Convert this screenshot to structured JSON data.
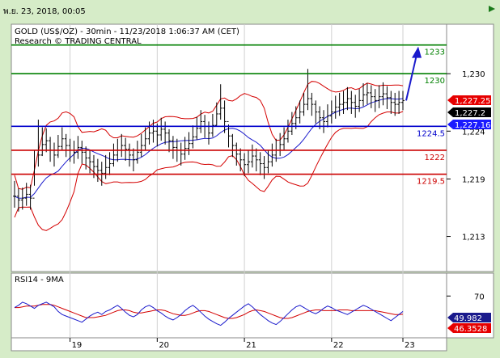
{
  "header": {
    "date_label": "พ.ย. 23, 2018, 00:05"
  },
  "chart_data": {
    "type": "line",
    "title": "GOLD (US$/OZ) - 30min - 11/23/2018 1:06:37 AM (CET)",
    "subtitle": "Research © TRADING CENTRAL",
    "x_tick_labels": [
      "19",
      "20",
      "21",
      "22",
      "23"
    ],
    "price_axis": {
      "ylim": [
        1209.5,
        1235.0
      ],
      "tick_labels": [
        "1,230",
        "1,224",
        "1,219",
        "1,213"
      ],
      "tick_values": [
        1230,
        1224,
        1219,
        1213
      ]
    },
    "levels": [
      {
        "label": "1233",
        "value": 1233,
        "color": "#008000"
      },
      {
        "label": "1230",
        "value": 1230,
        "color": "#008000"
      },
      {
        "label": "1224.5",
        "value": 1224.5,
        "color": "#0000cc"
      },
      {
        "label": "1222",
        "value": 1222,
        "color": "#cc0000"
      },
      {
        "label": "1219.5",
        "value": 1219.5,
        "color": "#cc0000"
      }
    ],
    "price_badges": [
      {
        "label": "1,227.25",
        "color": "#e60000"
      },
      {
        "label": "1,227.2",
        "color": "#000000"
      },
      {
        "label": "1,227.16",
        "color": "#1a1aff"
      }
    ],
    "price_series": {
      "name": "GOLD",
      "close": [
        1217.2,
        1216.8,
        1217.0,
        1217.4,
        1217.0,
        1219.5,
        1221.5,
        1222.6,
        1223.0,
        1222.0,
        1221.5,
        1222.4,
        1223.2,
        1222.5,
        1222.0,
        1221.8,
        1222.3,
        1221.8,
        1221.2,
        1220.8,
        1220.3,
        1219.9,
        1219.6,
        1220.2,
        1220.6,
        1221.5,
        1222.0,
        1222.5,
        1222.1,
        1221.5,
        1221.0,
        1221.8,
        1222.5,
        1223.2,
        1223.8,
        1224.0,
        1223.6,
        1224.2,
        1223.8,
        1223.0,
        1222.3,
        1222.0,
        1221.6,
        1222.2,
        1222.7,
        1223.4,
        1224.3,
        1225.0,
        1224.5,
        1223.8,
        1224.6,
        1225.8,
        1226.4,
        1225.0,
        1223.5,
        1222.5,
        1221.6,
        1221.0,
        1220.5,
        1220.8,
        1221.4,
        1221.0,
        1220.6,
        1220.2,
        1220.8,
        1221.5,
        1222.0,
        1222.6,
        1223.2,
        1224.0,
        1224.8,
        1225.4,
        1226.0,
        1226.8,
        1227.4,
        1226.8,
        1226.0,
        1225.4,
        1225.0,
        1225.6,
        1226.0,
        1226.5,
        1226.8,
        1227.0,
        1227.4,
        1227.0,
        1226.6,
        1227.2,
        1227.8,
        1228.0,
        1227.6,
        1227.2,
        1227.6,
        1227.9,
        1227.5,
        1227.0,
        1226.8,
        1227.0,
        1227.2
      ],
      "high": [
        1218.8,
        1218.0,
        1218.1,
        1218.6,
        1218.4,
        1222.0,
        1225.2,
        1224.4,
        1224.3,
        1223.4,
        1222.8,
        1223.6,
        1224.4,
        1223.7,
        1223.2,
        1223.0,
        1223.5,
        1223.0,
        1222.4,
        1222.0,
        1221.5,
        1221.1,
        1220.8,
        1221.5,
        1221.8,
        1222.7,
        1223.2,
        1223.7,
        1223.3,
        1222.7,
        1222.2,
        1223.0,
        1223.7,
        1224.4,
        1225.0,
        1225.2,
        1224.8,
        1225.4,
        1225.0,
        1224.2,
        1223.5,
        1223.2,
        1222.8,
        1223.4,
        1223.9,
        1224.6,
        1225.5,
        1226.2,
        1225.7,
        1225.0,
        1225.8,
        1227.0,
        1228.9,
        1227.2,
        1224.7,
        1223.7,
        1222.8,
        1222.2,
        1221.7,
        1222.0,
        1222.6,
        1222.2,
        1221.8,
        1221.4,
        1222.0,
        1222.7,
        1223.2,
        1223.8,
        1224.4,
        1225.2,
        1226.0,
        1226.6,
        1227.2,
        1228.0,
        1230.5,
        1228.0,
        1227.2,
        1226.6,
        1226.2,
        1226.8,
        1227.2,
        1227.7,
        1228.0,
        1228.2,
        1228.6,
        1228.2,
        1227.8,
        1228.4,
        1229.0,
        1229.0,
        1228.8,
        1228.4,
        1228.8,
        1229.1,
        1228.7,
        1228.2,
        1228.0,
        1228.2,
        1228.2
      ],
      "low": [
        1216.0,
        1215.6,
        1215.8,
        1216.2,
        1215.8,
        1218.3,
        1220.3,
        1221.4,
        1221.8,
        1220.8,
        1220.3,
        1221.2,
        1222.0,
        1221.3,
        1220.8,
        1220.6,
        1221.1,
        1220.6,
        1220.0,
        1219.6,
        1219.1,
        1218.7,
        1218.3,
        1219.0,
        1219.4,
        1220.3,
        1220.8,
        1221.3,
        1220.9,
        1220.3,
        1219.8,
        1220.6,
        1221.3,
        1222.0,
        1222.6,
        1222.8,
        1222.4,
        1223.0,
        1222.6,
        1221.8,
        1221.1,
        1220.8,
        1220.4,
        1221.0,
        1221.5,
        1222.2,
        1223.1,
        1223.8,
        1223.3,
        1222.6,
        1223.4,
        1224.6,
        1225.2,
        1223.8,
        1222.3,
        1221.3,
        1220.4,
        1219.8,
        1219.3,
        1219.6,
        1220.2,
        1219.8,
        1219.4,
        1219.0,
        1219.6,
        1220.3,
        1220.8,
        1221.4,
        1222.0,
        1222.8,
        1223.6,
        1224.2,
        1224.8,
        1225.6,
        1226.2,
        1225.6,
        1224.8,
        1224.2,
        1223.8,
        1224.4,
        1224.8,
        1225.3,
        1225.6,
        1225.8,
        1226.2,
        1225.8,
        1225.4,
        1226.0,
        1226.6,
        1226.8,
        1226.4,
        1226.0,
        1226.4,
        1226.7,
        1226.3,
        1225.8,
        1225.6,
        1225.8,
        1226.2
      ]
    },
    "forecast_arrow": {
      "from": 1227.2,
      "to": 1233.0
    },
    "rsi_panel": {
      "title": "RSI14 - 9MA",
      "ylim": [
        20,
        85
      ],
      "tick_labels": [
        "70"
      ],
      "tick_values": [
        70
      ],
      "rsi_value_label": "49.982",
      "ma_value_label": "46.3528",
      "rsi": [
        55,
        58,
        62,
        60,
        57,
        54,
        58,
        60,
        62,
        59,
        56,
        50,
        46,
        44,
        42,
        40,
        38,
        36,
        40,
        44,
        47,
        49,
        46,
        50,
        52,
        55,
        58,
        54,
        49,
        45,
        43,
        46,
        52,
        56,
        58,
        55,
        51,
        48,
        44,
        41,
        39,
        42,
        46,
        51,
        55,
        58,
        54,
        49,
        44,
        40,
        37,
        34,
        32,
        36,
        41,
        45,
        49,
        53,
        57,
        60,
        56,
        51,
        46,
        42,
        38,
        35,
        33,
        37,
        42,
        47,
        52,
        56,
        58,
        55,
        52,
        49,
        47,
        50,
        54,
        57,
        55,
        52,
        50,
        48,
        46,
        49,
        52,
        55,
        58,
        56,
        53,
        50,
        47,
        44,
        41,
        38,
        42,
        46,
        49.98
      ],
      "ma": [
        55,
        55,
        56,
        57,
        57,
        57,
        58,
        59,
        59,
        59,
        58,
        56,
        54,
        52,
        50,
        48,
        46,
        44,
        42,
        42,
        42,
        43,
        44,
        45,
        47,
        49,
        51,
        52,
        52,
        51,
        49,
        48,
        48,
        49,
        50,
        51,
        52,
        52,
        51,
        49,
        47,
        46,
        45,
        45,
        46,
        48,
        50,
        51,
        51,
        50,
        48,
        46,
        44,
        42,
        41,
        41,
        42,
        44,
        46,
        49,
        51,
        52,
        51,
        50,
        48,
        46,
        44,
        42,
        41,
        41,
        42,
        44,
        46,
        48,
        50,
        51,
        52,
        52,
        51,
        51,
        51,
        51,
        52,
        52,
        52,
        51,
        51,
        51,
        51,
        51,
        51,
        51,
        50,
        49,
        48,
        47,
        46,
        46,
        46.35
      ]
    }
  },
  "colors": {
    "background": "#d6ecc8",
    "plot_area": "#ffffff",
    "price_line": "#000000",
    "bollinger": "#d40000",
    "moving_average": "#1a1acc"
  }
}
